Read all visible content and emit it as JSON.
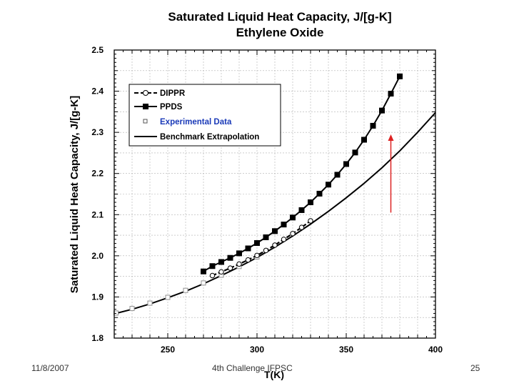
{
  "chart_data": {
    "type": "line",
    "title": "Saturated Liquid Heat Capacity, J/[g-K]",
    "subtitle": "Ethylene Oxide",
    "xlabel": "T(K)",
    "ylabel": "Saturated Liquid Heat Capacity, J/[g-K]",
    "xlim": [
      220,
      400
    ],
    "ylim": [
      1.8,
      2.5
    ],
    "xticks": [
      "250",
      "300",
      "350",
      "400"
    ],
    "yticks": [
      "1.8",
      "1.9",
      "2.0",
      "2.1",
      "2.2",
      "2.3",
      "2.4",
      "2.5"
    ],
    "grid": true,
    "legend_position": "top-left",
    "series": [
      {
        "name": "DIPPR",
        "marker": "open-circle",
        "x": [
          275,
          280,
          285,
          290,
          295,
          300,
          305,
          310,
          315,
          320,
          325,
          330
        ],
        "y": [
          1.952,
          1.961,
          1.97,
          1.98,
          1.99,
          2.001,
          2.013,
          2.026,
          2.04,
          2.054,
          2.069,
          2.085
        ]
      },
      {
        "name": "PPDS",
        "marker": "filled-square",
        "x": [
          270,
          275,
          280,
          285,
          290,
          295,
          300,
          305,
          310,
          315,
          320,
          325,
          330,
          335,
          340,
          345,
          350,
          355,
          360,
          365,
          370,
          375,
          380
        ],
        "y": [
          1.962,
          1.975,
          1.985,
          1.995,
          2.006,
          2.018,
          2.031,
          2.045,
          2.06,
          2.076,
          2.093,
          2.111,
          2.13,
          2.151,
          2.173,
          2.197,
          2.223,
          2.251,
          2.282,
          2.316,
          2.353,
          2.394,
          2.436
        ]
      },
      {
        "name": "Experimental Data",
        "marker": "open-square",
        "x": [
          221,
          230,
          240,
          250,
          260,
          270,
          280,
          290,
          300
        ],
        "y": [
          1.861,
          1.872,
          1.885,
          1.899,
          1.916,
          1.934,
          1.953,
          1.974,
          1.997
        ]
      },
      {
        "name": "Benchmark Extrapolation",
        "marker": "none",
        "x": [
          220,
          230,
          240,
          250,
          260,
          270,
          280,
          290,
          300,
          310,
          320,
          330,
          340,
          350,
          360,
          370,
          380,
          390,
          400
        ],
        "y": [
          1.859,
          1.87,
          1.883,
          1.898,
          1.914,
          1.932,
          1.952,
          1.973,
          1.996,
          2.021,
          2.048,
          2.077,
          2.108,
          2.141,
          2.176,
          2.214,
          2.255,
          2.3,
          2.348
        ]
      }
    ],
    "annotations": [
      {
        "type": "arrow",
        "color": "#dd2222",
        "from": [
          375,
          2.105
        ],
        "to": [
          375,
          2.295
        ]
      }
    ],
    "colors": {
      "line": "#000000",
      "experimental": "#909090",
      "legend_experimental_text": "#1a3ab8",
      "arrow": "#dd2222",
      "grid": "#b0b0b0"
    }
  },
  "footer": {
    "date": "11/8/2007",
    "event": "4th Challenge IFPSC",
    "page": "25"
  }
}
